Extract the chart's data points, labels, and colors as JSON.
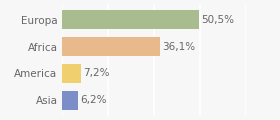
{
  "categories": [
    "Europa",
    "Africa",
    "America",
    "Asia"
  ],
  "values": [
    50.5,
    36.1,
    7.2,
    6.2
  ],
  "labels": [
    "50,5%",
    "36,1%",
    "7,2%",
    "6,2%"
  ],
  "bar_colors": [
    "#a8bc8f",
    "#e8b98a",
    "#f0cf6e",
    "#7b8ec8"
  ],
  "background_color": "#f7f7f7",
  "xlim": [
    0,
    68
  ],
  "bar_height": 0.72,
  "label_fontsize": 7.5,
  "category_fontsize": 7.5,
  "text_color": "#666666",
  "grid_color": "#ffffff",
  "grid_lw": 1.2
}
